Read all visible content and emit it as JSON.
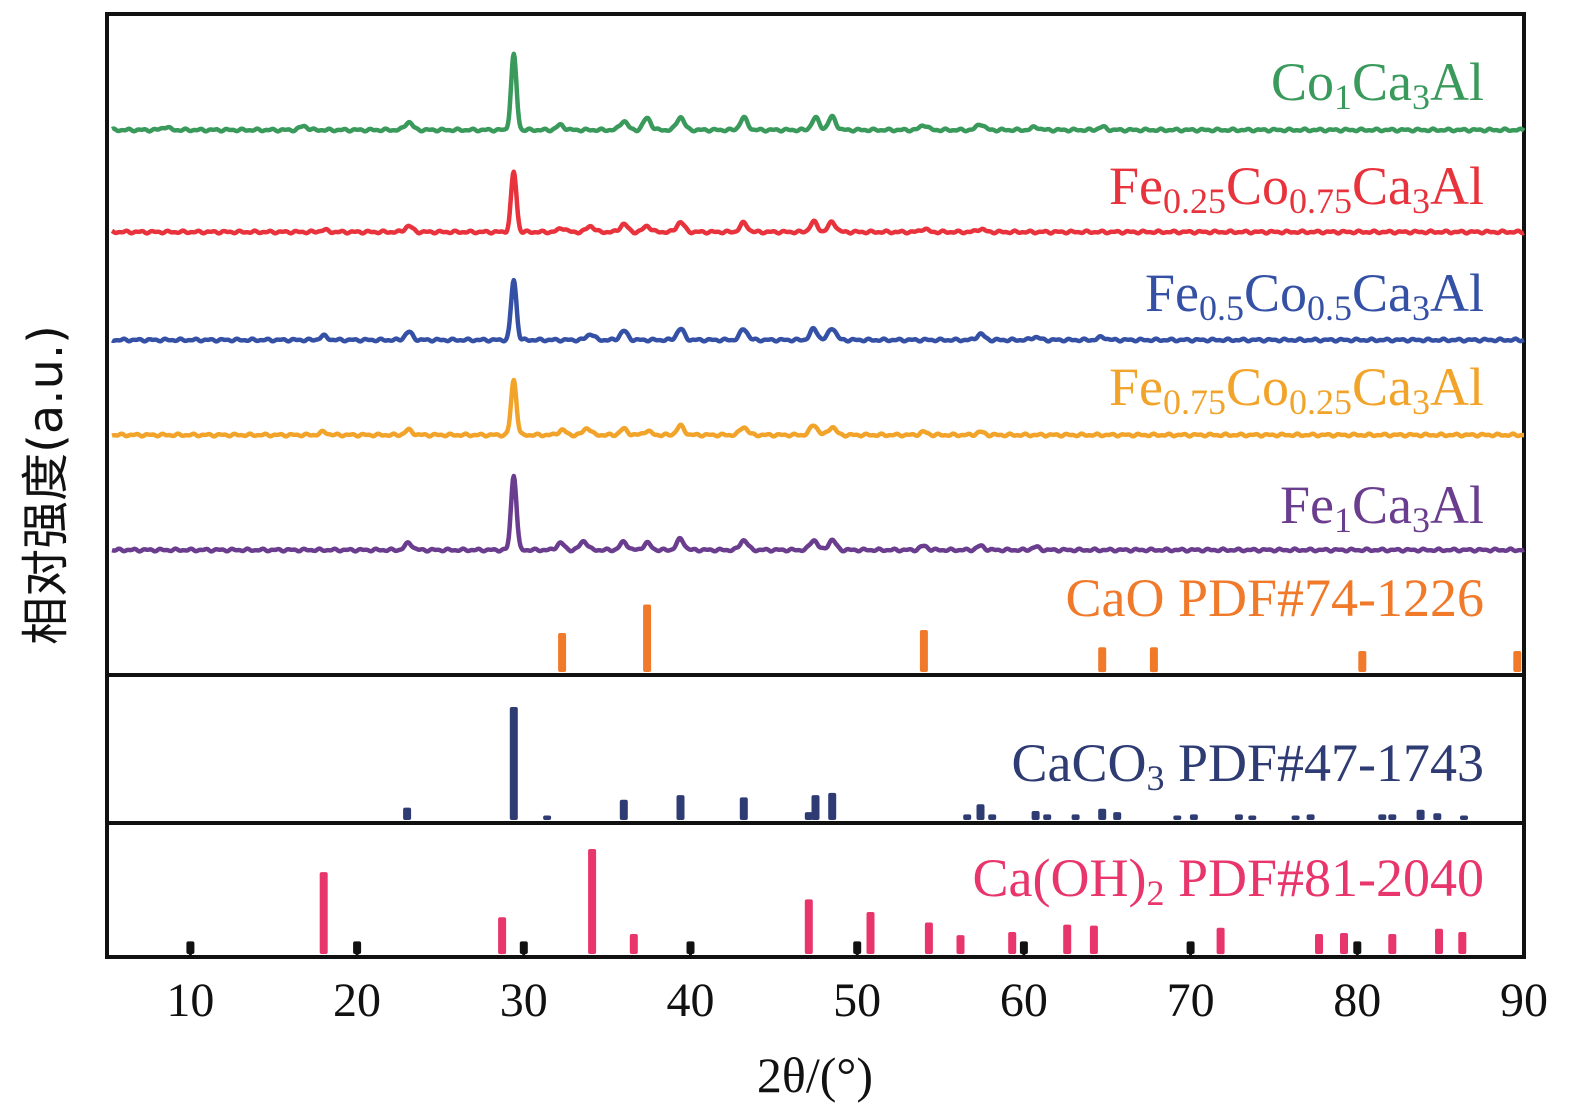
{
  "chart_data": {
    "type": "line",
    "title": "",
    "xlabel": "2θ/(°)",
    "ylabel": "相对强度(a.u.)",
    "xlim": [
      5,
      90
    ],
    "xticks": [
      "10",
      "20",
      "30",
      "40",
      "50",
      "60",
      "70",
      "80",
      "90"
    ],
    "xtick_values": [
      10,
      20,
      30,
      40,
      50,
      60,
      70,
      80,
      90
    ],
    "grid": false,
    "series": [
      {
        "name": "Co1Ca3Al",
        "legend": {
          "parts": [
            {
              "t": "Co"
            },
            {
              "t": "1",
              "sub": true
            },
            {
              "t": "Ca"
            },
            {
              "t": "3",
              "sub": true
            },
            {
              "t": "Al"
            }
          ]
        },
        "color": "#3a9a5c",
        "peaks": [
          [
            8.5,
            3
          ],
          [
            16.8,
            4
          ],
          [
            23.1,
            8
          ],
          [
            29.4,
            75
          ],
          [
            32.2,
            5
          ],
          [
            36.0,
            9
          ],
          [
            37.4,
            12
          ],
          [
            39.4,
            13
          ],
          [
            43.2,
            12
          ],
          [
            47.5,
            12
          ],
          [
            48.5,
            13
          ],
          [
            54.0,
            5
          ],
          [
            57.4,
            6
          ],
          [
            60.7,
            3
          ],
          [
            64.7,
            3
          ]
        ]
      },
      {
        "name": "Fe0.25Co0.75Ca3Al",
        "legend": {
          "parts": [
            {
              "t": "Fe"
            },
            {
              "t": "0.25",
              "sub": true
            },
            {
              "t": "Co"
            },
            {
              "t": "0.75",
              "sub": true
            },
            {
              "t": "Ca"
            },
            {
              "t": "3",
              "sub": true
            },
            {
              "t": "Al"
            }
          ]
        },
        "color": "#e8323c",
        "peaks": [
          [
            18.0,
            2
          ],
          [
            23.1,
            6
          ],
          [
            29.4,
            60
          ],
          [
            32.3,
            4
          ],
          [
            34.0,
            6
          ],
          [
            36.0,
            8
          ],
          [
            37.4,
            6
          ],
          [
            39.4,
            10
          ],
          [
            43.2,
            9
          ],
          [
            47.4,
            10
          ],
          [
            48.5,
            10
          ],
          [
            54.0,
            3
          ],
          [
            57.4,
            3
          ]
        ]
      },
      {
        "name": "Fe0.5Co0.5Ca3Al",
        "legend": {
          "parts": [
            {
              "t": "Fe"
            },
            {
              "t": "0.5",
              "sub": true
            },
            {
              "t": "Co"
            },
            {
              "t": "0.5",
              "sub": true
            },
            {
              "t": "Ca"
            },
            {
              "t": "3",
              "sub": true
            },
            {
              "t": "Al"
            }
          ]
        },
        "color": "#3551a6",
        "peaks": [
          [
            18.0,
            4
          ],
          [
            23.1,
            8
          ],
          [
            29.4,
            60
          ],
          [
            34.0,
            6
          ],
          [
            36.0,
            9
          ],
          [
            39.4,
            11
          ],
          [
            43.2,
            11
          ],
          [
            47.4,
            11
          ],
          [
            48.5,
            12
          ],
          [
            57.4,
            6
          ],
          [
            60.7,
            3
          ],
          [
            64.7,
            3
          ]
        ]
      },
      {
        "name": "Fe0.75Co0.25Ca3Al",
        "legend": {
          "parts": [
            {
              "t": "Fe"
            },
            {
              "t": "0.75",
              "sub": true
            },
            {
              "t": "Co"
            },
            {
              "t": "0.25",
              "sub": true
            },
            {
              "t": "Ca"
            },
            {
              "t": "3",
              "sub": true
            },
            {
              "t": "Al"
            }
          ]
        },
        "color": "#f2a42a",
        "peaks": [
          [
            18.0,
            3
          ],
          [
            23.1,
            5
          ],
          [
            29.4,
            55
          ],
          [
            32.3,
            5
          ],
          [
            33.8,
            7
          ],
          [
            36.0,
            6
          ],
          [
            37.4,
            4
          ],
          [
            39.4,
            9
          ],
          [
            43.2,
            8
          ],
          [
            47.4,
            10
          ],
          [
            48.5,
            8
          ],
          [
            54.0,
            3
          ],
          [
            57.4,
            3
          ]
        ]
      },
      {
        "name": "Fe1Ca3Al",
        "legend": {
          "parts": [
            {
              "t": "Fe"
            },
            {
              "t": "1",
              "sub": true
            },
            {
              "t": "Ca"
            },
            {
              "t": "3",
              "sub": true
            },
            {
              "t": "Al"
            }
          ]
        },
        "color": "#6b3d8f",
        "peaks": [
          [
            23.1,
            7
          ],
          [
            29.4,
            75
          ],
          [
            32.2,
            7
          ],
          [
            33.6,
            9
          ],
          [
            36.0,
            8
          ],
          [
            37.4,
            7
          ],
          [
            39.4,
            11
          ],
          [
            43.2,
            10
          ],
          [
            47.4,
            10
          ],
          [
            48.5,
            10
          ],
          [
            54.0,
            4
          ],
          [
            57.4,
            4
          ],
          [
            60.7,
            3
          ]
        ]
      }
    ],
    "references": [
      {
        "name": "CaO PDF#74-1226",
        "legend": {
          "parts": [
            {
              "t": "CaO PDF#74-1226"
            }
          ]
        },
        "color": "#f07a2a",
        "panel": 1,
        "sticks": [
          [
            32.3,
            52
          ],
          [
            37.4,
            90
          ],
          [
            54.0,
            56
          ],
          [
            64.7,
            33
          ],
          [
            67.8,
            33
          ],
          [
            80.3,
            28
          ],
          [
            89.6,
            28
          ]
        ]
      },
      {
        "name": "CaCO3 PDF#47-1743",
        "legend": {
          "parts": [
            {
              "t": "CaCO"
            },
            {
              "t": "3",
              "sub": true
            },
            {
              "t": " PDF#47-1743"
            }
          ]
        },
        "color": "#2e3c73",
        "panel": 2,
        "sticks": [
          [
            23.0,
            11
          ],
          [
            29.4,
            100
          ],
          [
            31.4,
            4
          ],
          [
            36.0,
            18
          ],
          [
            39.4,
            22
          ],
          [
            43.2,
            20
          ],
          [
            47.1,
            7
          ],
          [
            47.5,
            22
          ],
          [
            48.5,
            24
          ],
          [
            56.6,
            5
          ],
          [
            57.4,
            14
          ],
          [
            58.1,
            5
          ],
          [
            60.7,
            8
          ],
          [
            61.4,
            5
          ],
          [
            63.1,
            5
          ],
          [
            64.7,
            10
          ],
          [
            65.6,
            7
          ],
          [
            69.2,
            4
          ],
          [
            70.2,
            5
          ],
          [
            72.9,
            5
          ],
          [
            73.7,
            4
          ],
          [
            76.3,
            4
          ],
          [
            77.2,
            5
          ],
          [
            81.5,
            5
          ],
          [
            82.1,
            5
          ],
          [
            83.8,
            9
          ],
          [
            84.8,
            6
          ],
          [
            86.4,
            4
          ]
        ]
      },
      {
        "name": "Ca(OH)2 PDF#81-2040",
        "legend": {
          "parts": [
            {
              "t": "Ca(OH)"
            },
            {
              "t": "2",
              "sub": true
            },
            {
              "t": " PDF#81-2040"
            }
          ]
        },
        "color": "#e8356b",
        "panel": 3,
        "sticks": [
          [
            18.0,
            78
          ],
          [
            28.7,
            35
          ],
          [
            34.1,
            100
          ],
          [
            36.6,
            19
          ],
          [
            47.1,
            52
          ],
          [
            50.8,
            40
          ],
          [
            54.3,
            30
          ],
          [
            56.2,
            18
          ],
          [
            59.3,
            21
          ],
          [
            62.6,
            28
          ],
          [
            64.2,
            27
          ],
          [
            71.8,
            25
          ],
          [
            77.7,
            19
          ],
          [
            79.2,
            20
          ],
          [
            82.1,
            19
          ],
          [
            84.9,
            24
          ],
          [
            86.3,
            21
          ]
        ],
        "extra_sticks_color": "#111111",
        "extra_sticks": [
          [
            10,
            12
          ],
          [
            20,
            12
          ],
          [
            30,
            12
          ],
          [
            40,
            12
          ],
          [
            50,
            12
          ],
          [
            60,
            12
          ],
          [
            70,
            12
          ],
          [
            80,
            12
          ]
        ]
      }
    ]
  }
}
